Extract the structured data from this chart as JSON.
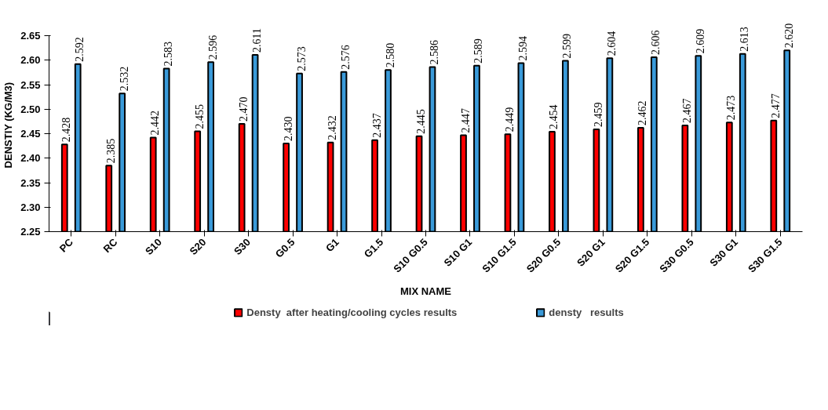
{
  "chart_data": {
    "type": "bar",
    "xlabel": "MIX NAME",
    "ylabel": "DENSTIY      (KG/M3)",
    "categories": [
      "PC",
      "RC",
      "S10",
      "S20",
      "S30",
      "G0.5",
      "G1",
      "G1.5",
      "S10 G0.5",
      "S10 G1",
      "S10 G1.5",
      "S20 G0.5",
      "S20 G1",
      "S20 G1.5",
      "S30 G0.5",
      "S30 G1",
      "S30 G1.5"
    ],
    "series": [
      {
        "name": "Densty  after heating/cooling cycles results",
        "color": "#ff0000",
        "values": [
          2.428,
          2.385,
          2.442,
          2.455,
          2.47,
          2.43,
          2.432,
          2.437,
          2.445,
          2.447,
          2.449,
          2.454,
          2.459,
          2.462,
          2.467,
          2.473,
          2.477
        ],
        "value_labels": [
          "2.428",
          "2.385",
          "2.442",
          "2.455",
          "2.470",
          "2.430",
          "2.432",
          "2.437",
          "2.445",
          "2.447",
          "2.449",
          "2.454",
          "2.459",
          "2.462",
          "2.467",
          "2.473",
          "2.477"
        ]
      },
      {
        "name": "densty   results",
        "color": "#3a9ad9",
        "values": [
          2.592,
          2.532,
          2.583,
          2.596,
          2.611,
          2.573,
          2.576,
          2.58,
          2.586,
          2.589,
          2.594,
          2.599,
          2.604,
          2.606,
          2.609,
          2.613,
          2.62
        ],
        "value_labels": [
          "2.592",
          "2.532",
          "2.583",
          "2.596",
          "2.611",
          "2.573",
          "2.576",
          "2.580",
          "2.586",
          "2.589",
          "2.594",
          "2.599",
          "2.604",
          "2.606",
          "2.609",
          "2.613",
          "2.620"
        ]
      }
    ],
    "ylim": [
      2.25,
      2.65
    ],
    "yticks": [
      {
        "value": 2.25,
        "label": "2.25"
      },
      {
        "value": 2.3,
        "label": "2.30"
      },
      {
        "value": 2.35,
        "label": "2.35"
      },
      {
        "value": 2.4,
        "label": "2.40"
      },
      {
        "value": 2.45,
        "label": "2.45"
      },
      {
        "value": 2.5,
        "label": "2.50"
      },
      {
        "value": 2.55,
        "label": "2.55"
      },
      {
        "value": 2.6,
        "label": "2.60"
      },
      {
        "value": 2.65,
        "label": "2.65"
      }
    ],
    "legend": "bottom"
  }
}
